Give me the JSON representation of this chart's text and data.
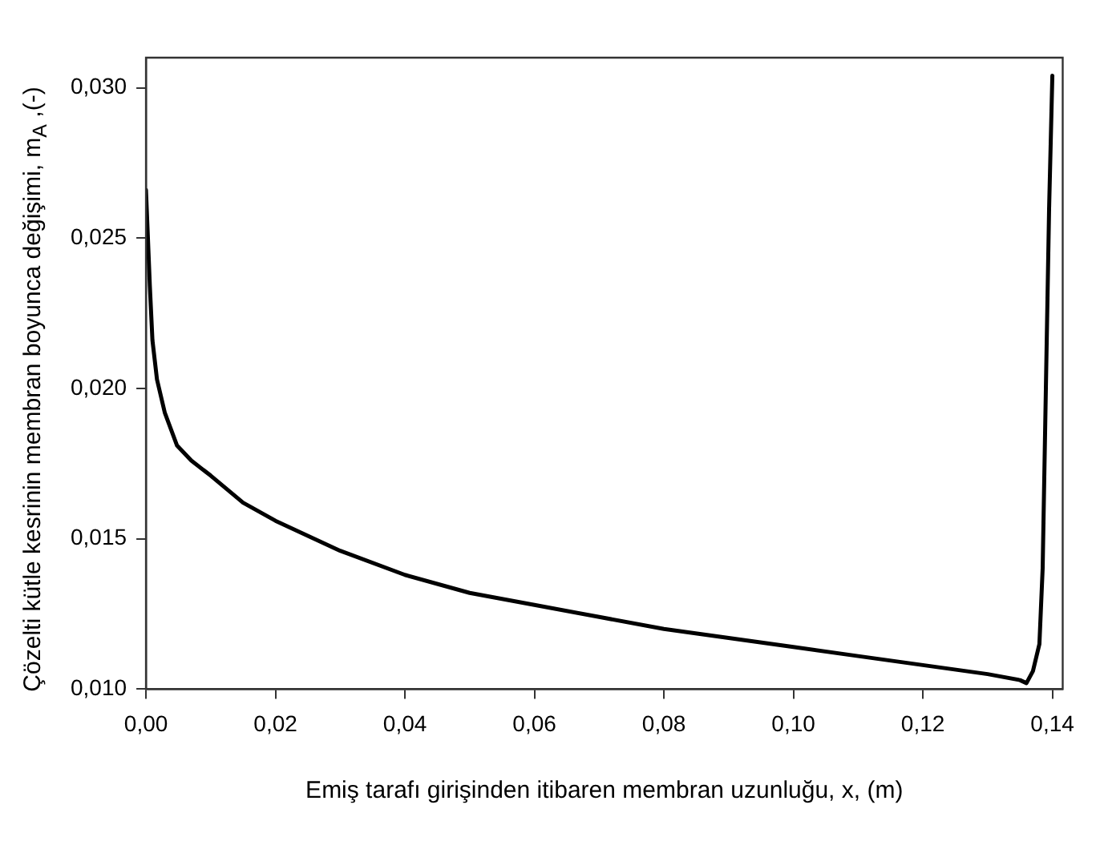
{
  "chart_data": {
    "type": "line",
    "xlabel": "Emiş tarafı girişinden itibaren membran uzunluğu, x, (m)",
    "ylabel": "Çözelti kütle kesrinin membran boyunca değişimi, m$_{A}$ ,(-)",
    "x": [
      0,
      0.0006,
      0.001,
      0.0017,
      0.0029,
      0.0048,
      0.007,
      0.01,
      0.015,
      0.02,
      0.03,
      0.04,
      0.05,
      0.06,
      0.07,
      0.08,
      0.09,
      0.1,
      0.11,
      0.12,
      0.13,
      0.135,
      0.136,
      0.137,
      0.138,
      0.1385,
      0.139,
      0.1395,
      0.14
    ],
    "series": [
      {
        "color": "#000000",
        "values": [
          0.0266,
          0.0234,
          0.0216,
          0.0203,
          0.0192,
          0.0181,
          0.0176,
          0.0171,
          0.0162,
          0.0156,
          0.0146,
          0.0138,
          0.0132,
          0.0128,
          0.0124,
          0.012,
          0.0117,
          0.0114,
          0.0111,
          0.0108,
          0.0105,
          0.0103,
          0.0102,
          0.0106,
          0.0115,
          0.014,
          0.02,
          0.026,
          0.0304
        ]
      }
    ],
    "xlim": [
      0,
      0.1416
    ],
    "ylim": [
      0.01,
      0.031
    ],
    "xticks": [
      {
        "value": 0,
        "label": "0,00"
      },
      {
        "value": 0.02,
        "label": "0,02"
      },
      {
        "value": 0.04,
        "label": "0,04"
      },
      {
        "value": 0.06,
        "label": "0,06"
      },
      {
        "value": 0.08,
        "label": "0,08"
      },
      {
        "value": 0.1,
        "label": "0,10"
      },
      {
        "value": 0.12,
        "label": "0,12"
      },
      {
        "value": 0.14,
        "label": "0,14"
      }
    ],
    "yticks": [
      {
        "value": 0.01,
        "label": "0,010"
      },
      {
        "value": 0.015,
        "label": "0,015"
      },
      {
        "value": 0.02,
        "label": "0,020"
      },
      {
        "value": 0.025,
        "label": "0,025"
      },
      {
        "value": 0.03,
        "label": "0,030"
      }
    ],
    "grid": false,
    "legend": false,
    "marker": "none",
    "line_style": "solid"
  }
}
